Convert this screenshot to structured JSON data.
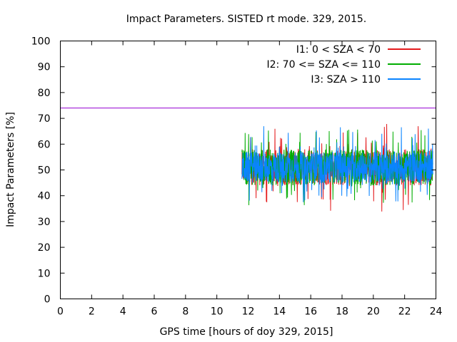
{
  "chart_data": {
    "type": "line",
    "title": "Impact Parameters. SISTED rt mode. 329, 2015.",
    "xlabel": "GPS time [hours of doy 329, 2015]",
    "ylabel": "Impact Parameters [%]",
    "xlim": [
      0,
      24
    ],
    "ylim": [
      0,
      100
    ],
    "xticks": [
      0,
      2,
      4,
      6,
      8,
      10,
      12,
      14,
      16,
      18,
      20,
      22,
      24
    ],
    "yticks": [
      0,
      10,
      20,
      30,
      40,
      50,
      60,
      70,
      80,
      90,
      100
    ],
    "grid": false,
    "legend_position": "top-right",
    "reference_line": {
      "y": 74,
      "color": "#9400d3"
    },
    "data_start_hour": 11.6,
    "data_end_hour": 23.8,
    "series": [
      {
        "name": "I1: 0 < SZA < 70",
        "color": "#e41a1c",
        "center": 50.5,
        "typical_low": 44,
        "typical_high": 58,
        "min": 33.5,
        "max": 68
      },
      {
        "name": "I2: 70 <= SZA <= 110",
        "color": "#00ad00",
        "center": 50.5,
        "typical_low": 44,
        "typical_high": 58,
        "min": 36,
        "max": 66
      },
      {
        "name": "I3: SZA > 110",
        "color": "#0a84ff",
        "center": 51,
        "typical_low": 45,
        "typical_high": 57,
        "min": 37,
        "max": 67
      }
    ]
  }
}
